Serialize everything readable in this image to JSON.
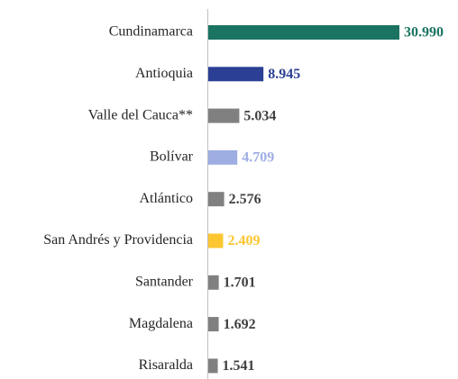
{
  "chart_data": {
    "type": "barh",
    "categories": [
      "Cundinamarca",
      "Antioquia",
      "Valle del Cauca**",
      "Bolívar",
      "Atlántico",
      "San Andrés y Providencia",
      "Santander",
      "Magdalena",
      "Risaralda"
    ],
    "values": [
      30990,
      8945,
      5034,
      4709,
      2576,
      2409,
      1701,
      1692,
      1541
    ],
    "value_labels": [
      "30.990",
      "8.945",
      "5.034",
      "4.709",
      "2.576",
      "2.409",
      "1.701",
      "1.692",
      "1.541"
    ],
    "colors": [
      "#1b7461",
      "#2b3f94",
      "#808080",
      "#9eaee3",
      "#808080",
      "#fbc630",
      "#808080",
      "#808080",
      "#808080"
    ],
    "label_colors": [
      "#1b7461",
      "#2b3f94",
      "#404040",
      "#9eaee3",
      "#404040",
      "#fbc630",
      "#404040",
      "#404040",
      "#404040"
    ]
  }
}
